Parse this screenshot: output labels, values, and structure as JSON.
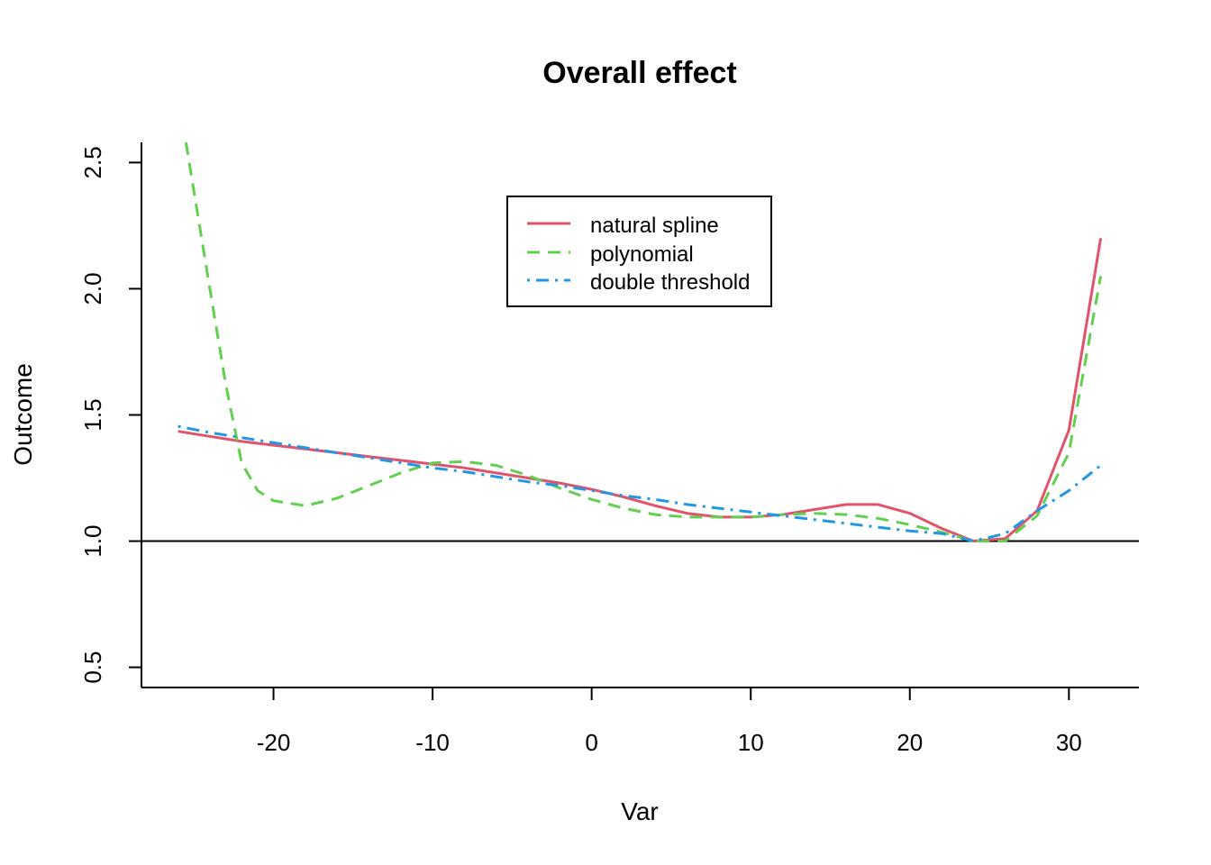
{
  "chart_data": {
    "type": "line",
    "title": "Overall effect",
    "xlabel": "Var",
    "ylabel": "Outcome",
    "xlim": [
      -28.3,
      34.4
    ],
    "ylim": [
      0.42,
      2.58
    ],
    "xticks": [
      -20,
      -10,
      0,
      10,
      20,
      30
    ],
    "xtick_labels": [
      "-20",
      "-10",
      "0",
      "10",
      "20",
      "30"
    ],
    "yticks": [
      0.5,
      1.0,
      1.5,
      2.0,
      2.5
    ],
    "ytick_labels": [
      "0.5",
      "1.0",
      "1.5",
      "2.0",
      "2.5"
    ],
    "reference_line": 1.0,
    "legend_position": "top-center",
    "series": [
      {
        "name": "natural spline",
        "color": "#DF536B",
        "dash": "solid",
        "x": [
          -26,
          -24,
          -22,
          -20,
          -18,
          -16,
          -14,
          -12,
          -10,
          -8,
          -6,
          -4,
          -2,
          0,
          2,
          4,
          6,
          8,
          10,
          12,
          14,
          16,
          18,
          20,
          22,
          24,
          26,
          28,
          30,
          32
        ],
        "y": [
          1.435,
          1.415,
          1.395,
          1.38,
          1.365,
          1.35,
          1.335,
          1.32,
          1.305,
          1.29,
          1.27,
          1.25,
          1.23,
          1.205,
          1.175,
          1.14,
          1.11,
          1.095,
          1.095,
          1.105,
          1.125,
          1.145,
          1.145,
          1.11,
          1.05,
          1.0,
          1.01,
          1.12,
          1.44,
          2.2
        ]
      },
      {
        "name": "polynomial",
        "color": "#61D04F",
        "dash": "dashed",
        "x": [
          -25.5,
          -24,
          -23,
          -22,
          -21,
          -20,
          -18,
          -16,
          -14,
          -12,
          -10,
          -8,
          -6,
          -4,
          -2,
          0,
          2,
          4,
          6,
          8,
          10,
          12,
          14,
          16,
          18,
          20,
          22,
          24,
          26,
          28,
          30,
          32
        ],
        "y": [
          2.58,
          2.0,
          1.62,
          1.31,
          1.2,
          1.16,
          1.14,
          1.17,
          1.22,
          1.27,
          1.31,
          1.315,
          1.3,
          1.26,
          1.21,
          1.165,
          1.13,
          1.105,
          1.095,
          1.095,
          1.095,
          1.105,
          1.11,
          1.105,
          1.09,
          1.065,
          1.035,
          1.0,
          1.0,
          1.1,
          1.35,
          2.05
        ]
      },
      {
        "name": "double threshold",
        "color": "#2297E6",
        "dash": "dotdash",
        "x": [
          -26,
          -24,
          -22,
          -20,
          -18,
          -16,
          -14,
          -12,
          -10,
          -8,
          -6,
          -4,
          -2,
          0,
          2,
          4,
          6,
          8,
          10,
          12,
          14,
          16,
          18,
          20,
          22,
          24,
          26,
          28,
          30,
          32
        ],
        "y": [
          1.455,
          1.43,
          1.41,
          1.39,
          1.37,
          1.35,
          1.33,
          1.31,
          1.29,
          1.275,
          1.255,
          1.235,
          1.22,
          1.2,
          1.18,
          1.165,
          1.145,
          1.13,
          1.115,
          1.1,
          1.085,
          1.07,
          1.055,
          1.04,
          1.03,
          1.0,
          1.03,
          1.12,
          1.2,
          1.3
        ]
      }
    ]
  }
}
